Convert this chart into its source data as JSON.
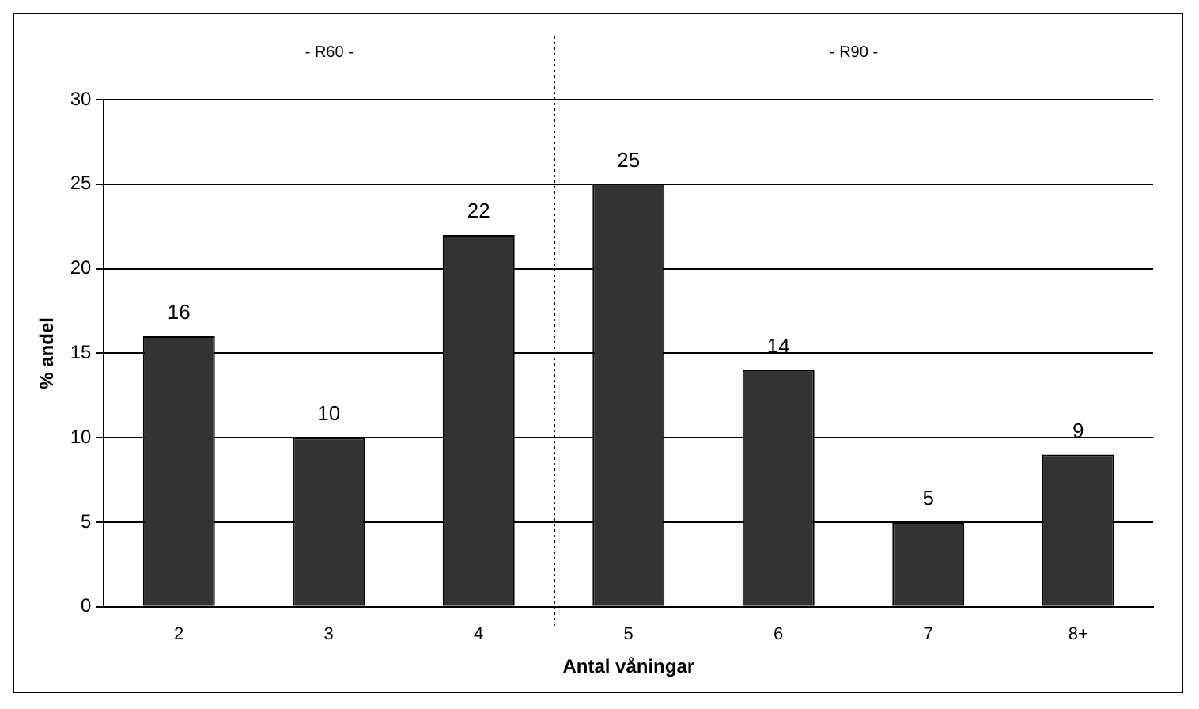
{
  "chart_data": {
    "type": "bar",
    "xlabel": "Antal våningar",
    "ylabel": "% andel",
    "categories": [
      "2",
      "3",
      "4",
      "5",
      "6",
      "7",
      "8+"
    ],
    "values": [
      16,
      10,
      22,
      25,
      14,
      5,
      9
    ],
    "color": "#333333",
    "ylim": [
      0,
      30
    ],
    "yticks": [
      0,
      5,
      10,
      15,
      20,
      25,
      30
    ],
    "grid": "y",
    "data_labels": true,
    "annotations": [
      "- R60 -",
      "- R90 -"
    ],
    "ref_lines": [
      {
        "axis": "x",
        "value": "5",
        "line_style": "dotted"
      }
    ]
  }
}
